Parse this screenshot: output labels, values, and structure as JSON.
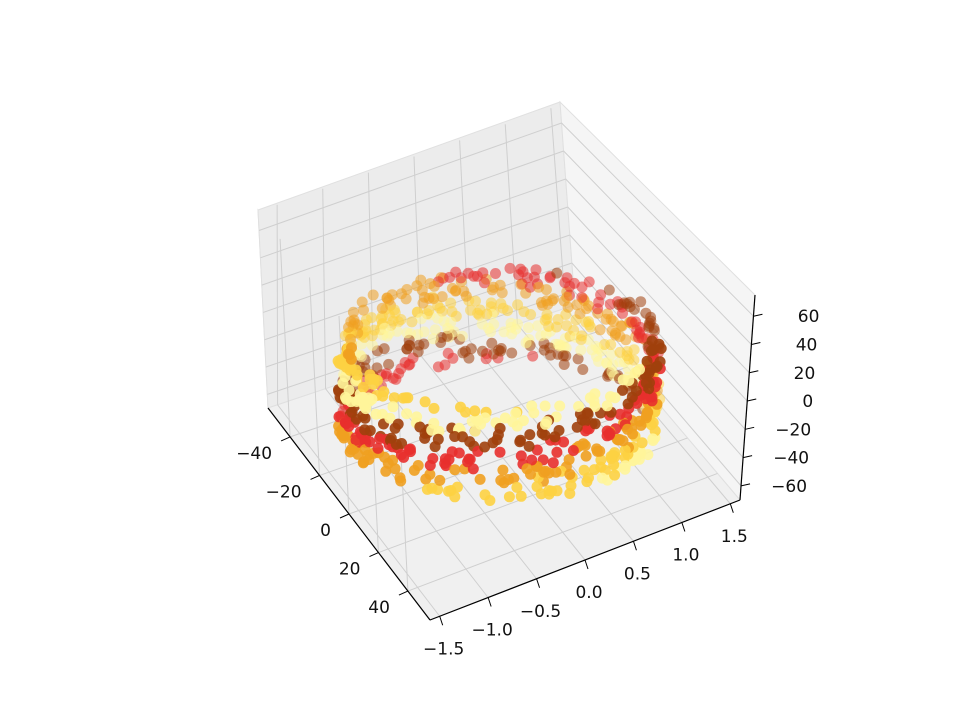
{
  "chart_data": {
    "type": "scatter",
    "projection": "3d",
    "title": "",
    "xlabel": "",
    "ylabel": "",
    "zlabel": "",
    "x_axis": {
      "ticks": [
        -40,
        -20,
        0,
        20,
        40
      ],
      "tick_labels": [
        "−40",
        "−20",
        "0",
        "20",
        "40"
      ],
      "lim": [
        -55,
        55
      ]
    },
    "y_axis": {
      "ticks": [
        -1.5,
        -1.0,
        -0.5,
        0.0,
        0.5,
        1.0,
        1.5
      ],
      "tick_labels": [
        "−1.5",
        "−1.0",
        "−0.5",
        "0.0",
        "0.5",
        "1.0",
        "1.5"
      ],
      "lim": [
        -1.6,
        1.6
      ]
    },
    "z_axis": {
      "ticks": [
        -60,
        -40,
        -20,
        0,
        20,
        40,
        60
      ],
      "tick_labels": [
        "−60",
        "−40",
        "−20",
        "0",
        "20",
        "40",
        "60"
      ],
      "lim": [
        -70,
        75
      ]
    },
    "grid": true,
    "legend": "none",
    "view": {
      "elev": 40,
      "azim": -30
    },
    "shape": "cylindrical band of points wrapped around the y-z plane, colored in horizontal bands",
    "colors": [
      "#fff59a",
      "#fdd142",
      "#f0a020",
      "#e8302e",
      "#a0400c"
    ],
    "sample_points": [
      {
        "x": -38,
        "y": 0.0,
        "z": 55,
        "color": "#fff59a"
      },
      {
        "x": -30,
        "y": 0.7,
        "z": 40,
        "color": "#fdd142"
      },
      {
        "x": -20,
        "y": 1.0,
        "z": 20,
        "color": "#f0a020"
      },
      {
        "x": -10,
        "y": 1.0,
        "z": -10,
        "color": "#e8302e"
      },
      {
        "x": 0,
        "y": 0.6,
        "z": -45,
        "color": "#a0400c"
      },
      {
        "x": 10,
        "y": -0.2,
        "z": -60,
        "color": "#a0400c"
      },
      {
        "x": 20,
        "y": -0.9,
        "z": -40,
        "color": "#f0a020"
      },
      {
        "x": 30,
        "y": -1.0,
        "z": -5,
        "color": "#fdd142"
      },
      {
        "x": 38,
        "y": -0.6,
        "z": 35,
        "color": "#fff59a"
      },
      {
        "x": 40,
        "y": 0.0,
        "z": 60,
        "color": "#e8302e"
      }
    ]
  }
}
